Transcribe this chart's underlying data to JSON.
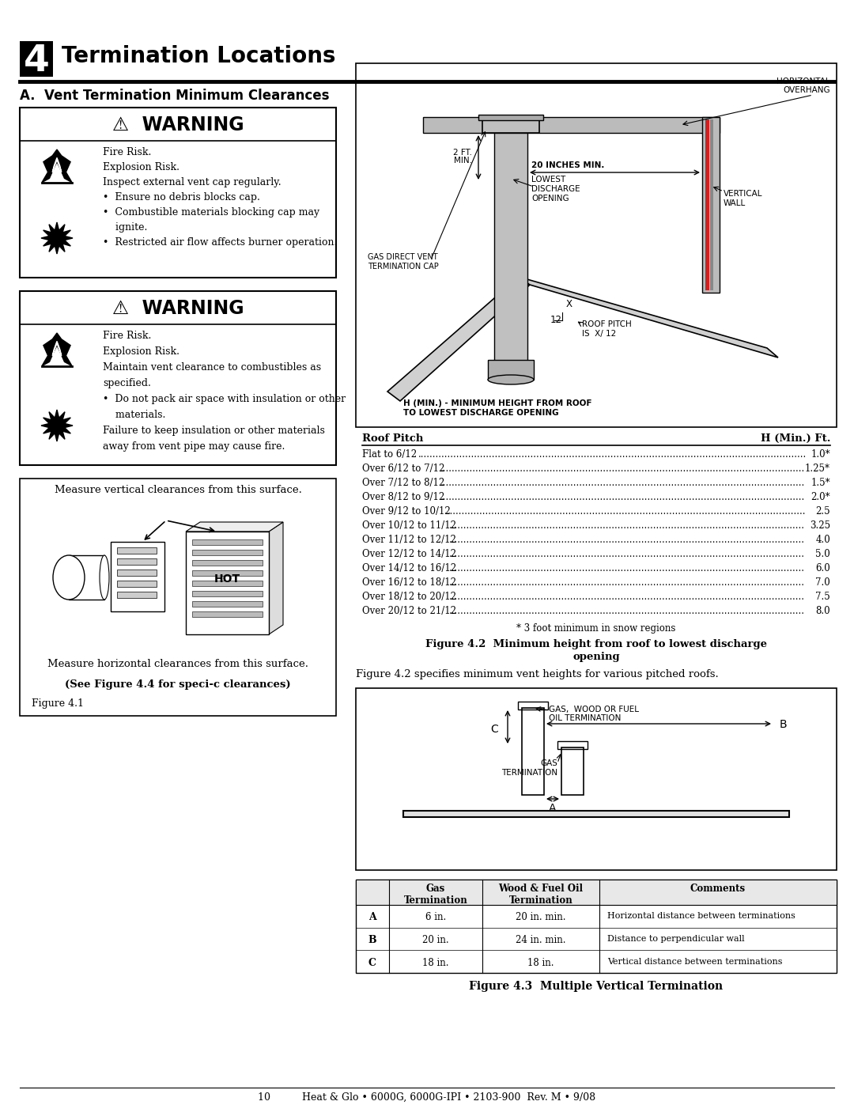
{
  "page_title_num": "4",
  "page_title_text": "Termination Locations",
  "section_a_title": "A.  Vent Termination Minimum Clearances",
  "warning1_title": "⚠  WARNING",
  "warning1_lines": [
    "Fire Risk.",
    "Explosion Risk.",
    "Inspect external vent cap regularly.",
    "•  Ensure no debris blocks cap.",
    "•  Combustible materials blocking cap may",
    "    ignite.",
    "•  Restricted air flow affects burner operation."
  ],
  "warning2_title": "⚠  WARNING",
  "warning2_lines": [
    "Fire Risk.",
    "Explosion Risk.",
    "Maintain vent clearance to combustibles as",
    "specified.",
    "•  Do not pack air space with insulation or other",
    "    materials.",
    "Failure to keep insulation or other materials",
    "away from vent pipe may cause fire."
  ],
  "fig1_top_text": "Measure vertical clearances from this surface.",
  "fig1_bottom_text": "Measure horizontal clearances from this surface.",
  "fig1_caption1": "(See Figure 4.4 for speci­c clearances)",
  "fig1_caption2": "Figure 4.1",
  "roof_pitch_header_left": "Roof Pitch",
  "roof_pitch_header_right": "H (Min.) Ft.",
  "roof_pitch_rows": [
    [
      "Flat to 6/12",
      "1.0*"
    ],
    [
      "Over 6/12 to 7/12",
      "1.25*"
    ],
    [
      "Over 7/12 to 8/12",
      "1.5*"
    ],
    [
      "Over 8/12 to 9/12",
      "2.0*"
    ],
    [
      "Over 9/12 to 10/12",
      "2.5"
    ],
    [
      "Over 10/12 to 11/12",
      "3.25"
    ],
    [
      "Over 11/12 to 12/12",
      "4.0"
    ],
    [
      "Over 12/12 to 14/12",
      "5.0"
    ],
    [
      "Over 14/12 to 16/12",
      "6.0"
    ],
    [
      "Over 16/12 to 18/12",
      "7.0"
    ],
    [
      "Over 18/12 to 20/12",
      "7.5"
    ],
    [
      "Over 20/12 to 21/12",
      "8.0"
    ]
  ],
  "snow_note": "* 3 foot minimum in snow regions",
  "fig2_caption_bold": "Figure 4.2  Minimum height from roof to lowest discharge",
  "fig2_caption_rest": "opening",
  "fig2_text": "Figure 4.2 specifies minimum vent heights for various pitched roofs.",
  "fig3_table_headers": [
    "",
    "Gas\nTermination",
    "Wood & Fuel Oil\nTermination",
    "Comments"
  ],
  "fig3_rows": [
    [
      "A",
      "6 in.",
      "20 in. min.",
      "Horizontal distance between terminations"
    ],
    [
      "B",
      "20 in.",
      "24 in. min.",
      "Distance to perpendicular wall"
    ],
    [
      "C",
      "18 in.",
      "18 in.",
      "Vertical distance between terminations"
    ]
  ],
  "fig3_caption": "Figure 4.3  Multiple Vertical Termination",
  "footer_text": "10          Heat & Glo • 6000G, 6000G-IPI • 2103-900  Rev. M • 9/08",
  "bg_color": "#ffffff"
}
